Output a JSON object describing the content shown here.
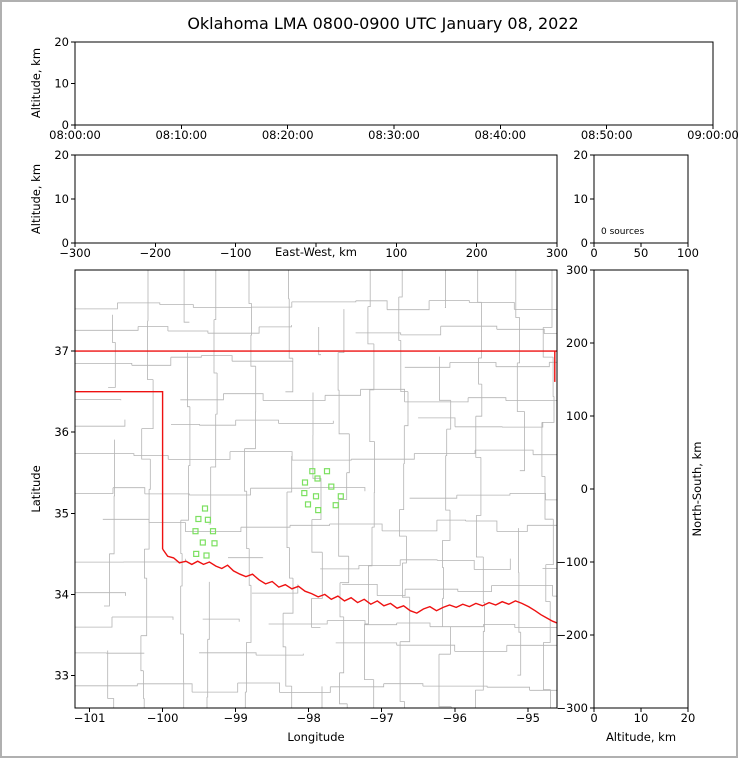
{
  "title": "Oklahoma LMA 0800-0900 UTC January 08, 2022",
  "colors": {
    "figure_border": "#b0b0b0",
    "axis": "#000000",
    "county_line": "#b4b4b4",
    "state_border": "#ee1111",
    "station_edge": "#7ce060"
  },
  "chart_data": [
    {
      "id": "time_height",
      "type": "scatter",
      "ylabel": "Altitude, km",
      "xlim": [
        0,
        3600
      ],
      "ylim": [
        0,
        20
      ],
      "xticks": {
        "values": [
          0,
          600,
          1200,
          1800,
          2400,
          3000,
          3600
        ],
        "labels": [
          "08:00:00",
          "08:10:00",
          "08:20:00",
          "08:30:00",
          "08:40:00",
          "08:50:00",
          "09:00:00"
        ]
      },
      "yticks": {
        "values": [
          0,
          10,
          20
        ],
        "labels": [
          "0",
          "10",
          "20"
        ]
      },
      "points": []
    },
    {
      "id": "ew_height",
      "type": "scatter",
      "xlabel": "East-West, km",
      "ylabel": "Altitude, km",
      "xlim": [
        -300,
        300
      ],
      "ylim": [
        0,
        20
      ],
      "xticks": {
        "values": [
          -300,
          -200,
          -100,
          0,
          100,
          200,
          300
        ],
        "labels": [
          "−300",
          "−200",
          "−100",
          "",
          "100",
          "200",
          "300"
        ]
      },
      "yticks": {
        "values": [
          0,
          10,
          20
        ],
        "labels": [
          "0",
          "10",
          "20"
        ]
      },
      "points": []
    },
    {
      "id": "alt_histogram",
      "type": "bar",
      "annotation": "0 sources",
      "xlim": [
        0,
        100
      ],
      "ylim": [
        0,
        20
      ],
      "xticks": {
        "values": [
          0,
          50,
          100
        ],
        "labels": [
          "0",
          "50",
          "100"
        ]
      },
      "yticks": {
        "values": [
          0,
          10,
          20
        ],
        "labels": [
          "0",
          "10",
          "20"
        ]
      },
      "values": []
    },
    {
      "id": "map",
      "type": "scatter",
      "xlabel": "Longitude",
      "ylabel": "Latitude",
      "xlim": [
        -101.2,
        -94.6
      ],
      "ylim": [
        32.6,
        38.0
      ],
      "xticks": {
        "values": [
          -101,
          -100,
          -99,
          -98,
          -97,
          -96,
          -95
        ],
        "labels": [
          "−101",
          "−100",
          "−99",
          "−98",
          "−97",
          "−96",
          "−95"
        ]
      },
      "yticks": {
        "values": [
          33,
          34,
          35,
          36,
          37
        ],
        "labels": [
          "33",
          "34",
          "35",
          "36",
          "37"
        ]
      },
      "series": [
        {
          "name": "lma-stations",
          "marker": "square",
          "color": "#7ce060",
          "points": [
            [
              -99.42,
              35.06
            ],
            [
              -99.51,
              34.93
            ],
            [
              -99.38,
              34.92
            ],
            [
              -99.55,
              34.78
            ],
            [
              -99.31,
              34.78
            ],
            [
              -99.45,
              34.64
            ],
            [
              -99.29,
              34.63
            ],
            [
              -99.54,
              34.5
            ],
            [
              -99.4,
              34.48
            ],
            [
              -97.95,
              35.52
            ],
            [
              -97.75,
              35.52
            ],
            [
              -98.05,
              35.38
            ],
            [
              -97.88,
              35.43
            ],
            [
              -97.69,
              35.33
            ],
            [
              -98.06,
              35.25
            ],
            [
              -97.9,
              35.21
            ],
            [
              -98.01,
              35.11
            ],
            [
              -97.87,
              35.04
            ],
            [
              -97.56,
              35.21
            ],
            [
              -97.63,
              35.1
            ]
          ]
        }
      ],
      "state_border": {
        "kansas": [
          [
            -101.2,
            37.0
          ],
          [
            -94.6,
            37.0
          ]
        ],
        "panhandle": [
          [
            -101.2,
            36.5
          ],
          [
            -100.0,
            36.5
          ],
          [
            -100.0,
            34.56
          ]
        ],
        "east": [
          [
            -94.63,
            37.0
          ],
          [
            -94.63,
            36.62
          ]
        ],
        "red_river": [
          [
            -100.0,
            34.56
          ],
          [
            -99.93,
            34.47
          ],
          [
            -99.85,
            34.45
          ],
          [
            -99.77,
            34.39
          ],
          [
            -99.68,
            34.41
          ],
          [
            -99.6,
            34.37
          ],
          [
            -99.52,
            34.41
          ],
          [
            -99.44,
            34.37
          ],
          [
            -99.36,
            34.4
          ],
          [
            -99.27,
            34.35
          ],
          [
            -99.19,
            34.32
          ],
          [
            -99.11,
            34.36
          ],
          [
            -99.03,
            34.29
          ],
          [
            -98.94,
            34.25
          ],
          [
            -98.86,
            34.22
          ],
          [
            -98.77,
            34.25
          ],
          [
            -98.68,
            34.18
          ],
          [
            -98.59,
            34.13
          ],
          [
            -98.5,
            34.16
          ],
          [
            -98.41,
            34.09
          ],
          [
            -98.32,
            34.12
          ],
          [
            -98.23,
            34.07
          ],
          [
            -98.14,
            34.1
          ],
          [
            -98.05,
            34.04
          ],
          [
            -97.96,
            34.01
          ],
          [
            -97.87,
            33.97
          ],
          [
            -97.78,
            34.0
          ],
          [
            -97.69,
            33.94
          ],
          [
            -97.6,
            33.98
          ],
          [
            -97.51,
            33.92
          ],
          [
            -97.42,
            33.96
          ],
          [
            -97.33,
            33.9
          ],
          [
            -97.24,
            33.94
          ],
          [
            -97.15,
            33.88
          ],
          [
            -97.06,
            33.92
          ],
          [
            -96.97,
            33.86
          ],
          [
            -96.88,
            33.89
          ],
          [
            -96.79,
            33.83
          ],
          [
            -96.7,
            33.86
          ],
          [
            -96.61,
            33.8
          ],
          [
            -96.52,
            33.77
          ],
          [
            -96.43,
            33.82
          ],
          [
            -96.34,
            33.85
          ],
          [
            -96.25,
            33.8
          ],
          [
            -96.16,
            33.84
          ],
          [
            -96.07,
            33.87
          ],
          [
            -95.98,
            33.84
          ],
          [
            -95.89,
            33.88
          ],
          [
            -95.8,
            33.85
          ],
          [
            -95.71,
            33.89
          ],
          [
            -95.62,
            33.86
          ],
          [
            -95.53,
            33.9
          ],
          [
            -95.44,
            33.87
          ],
          [
            -95.35,
            33.91
          ],
          [
            -95.26,
            33.88
          ],
          [
            -95.17,
            33.92
          ],
          [
            -95.08,
            33.89
          ],
          [
            -94.99,
            33.85
          ],
          [
            -94.9,
            33.8
          ],
          [
            -94.82,
            33.75
          ],
          [
            -94.74,
            33.71
          ],
          [
            -94.66,
            33.67
          ],
          [
            -94.58,
            33.64
          ]
        ]
      }
    },
    {
      "id": "ns_height",
      "type": "scatter",
      "xlabel": "Altitude, km",
      "ylabel": "North-South, km",
      "xlim": [
        0,
        20
      ],
      "ylim": [
        -300,
        300
      ],
      "xticks": {
        "values": [
          0,
          10,
          20
        ],
        "labels": [
          "0",
          "10",
          "20"
        ]
      },
      "yticks": {
        "values": [
          -300,
          -200,
          -100,
          0,
          100,
          200,
          300
        ],
        "labels": [
          "−300",
          "−200",
          "−100",
          "0",
          "100",
          "200",
          "300"
        ]
      },
      "points": []
    }
  ]
}
